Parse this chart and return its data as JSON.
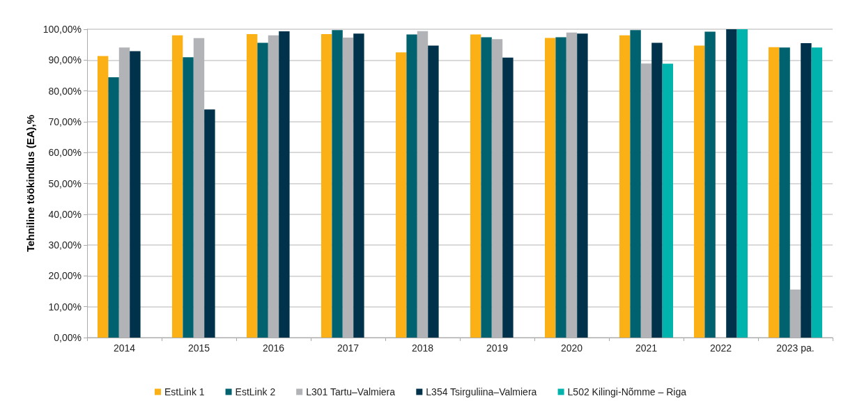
{
  "chart_data": {
    "type": "bar",
    "ylabel": "Tehniline töökindlus (EA),%",
    "categories": [
      "2014",
      "2015",
      "2016",
      "2017",
      "2018",
      "2019",
      "2020",
      "2021",
      "2022",
      "2023 pa."
    ],
    "series": [
      {
        "name": "EstLink 1",
        "color": "#fbb116",
        "values": [
          91.3,
          98.0,
          98.4,
          98.4,
          92.5,
          98.3,
          97.2,
          98.0,
          94.7,
          94.2
        ]
      },
      {
        "name": "EstLink 2",
        "color": "#00626f",
        "values": [
          84.4,
          90.9,
          95.6,
          99.7,
          98.3,
          97.4,
          97.4,
          99.7,
          99.2,
          94.1
        ]
      },
      {
        "name": "L301 Tartu–Valmiera",
        "color": "#b1b3b6",
        "values": [
          94.1,
          97.1,
          98.0,
          97.3,
          99.4,
          96.8,
          98.9,
          88.9,
          null,
          15.6
        ]
      },
      {
        "name": "L354 Tsirguliina–Valmiera",
        "color": "#00334b",
        "values": [
          92.9,
          74.0,
          99.3,
          98.6,
          94.7,
          90.8,
          98.6,
          95.6,
          100,
          95.5
        ]
      },
      {
        "name": "L502 Kilingi-Nõmme – Riga",
        "color": "#00b3ac",
        "values": [
          null,
          null,
          null,
          null,
          null,
          null,
          null,
          88.8,
          100,
          94.1
        ]
      }
    ],
    "ylim": [
      0,
      100
    ],
    "yticks": [
      {
        "value": 0,
        "label": "0,00%"
      },
      {
        "value": 10,
        "label": "10,00%"
      },
      {
        "value": 20,
        "label": "20,00%"
      },
      {
        "value": 30,
        "label": "30,00%"
      },
      {
        "value": 40,
        "label": "40,00%"
      },
      {
        "value": 50,
        "label": "50,00%"
      },
      {
        "value": 60,
        "label": "60,00%"
      },
      {
        "value": 70,
        "label": "70,00%"
      },
      {
        "value": 80,
        "label": "80,00%"
      },
      {
        "value": 90,
        "label": "90,00%"
      },
      {
        "value": 100,
        "label": "100,00%"
      }
    ],
    "grid": "y",
    "legend": "bottom"
  }
}
